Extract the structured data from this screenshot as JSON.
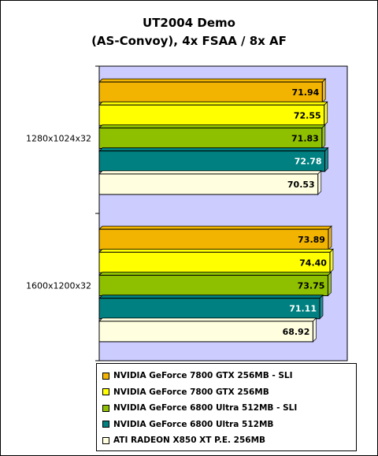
{
  "chart_data": {
    "type": "bar",
    "orientation": "horizontal",
    "title": [
      "UT2004 Demo",
      "(AS-Convoy), 4x FSAA / 8x AF"
    ],
    "categories": [
      "1280x1024x32",
      "1600x1200x32"
    ],
    "series": [
      {
        "name": "NVIDIA GeForce 7800 GTX 256MB - SLI",
        "color": "#f2b400",
        "label_color": "#000000",
        "values": [
          71.94,
          73.89
        ]
      },
      {
        "name": "NVIDIA GeForce 7800 GTX 256MB",
        "color": "#ffff00",
        "label_color": "#000000",
        "values": [
          72.55,
          74.4
        ]
      },
      {
        "name": "NVIDIA GeForce 6800 Ultra 512MB - SLI",
        "color": "#8fc000",
        "label_color": "#000000",
        "values": [
          71.83,
          73.75
        ]
      },
      {
        "name": "NVIDIA GeForce 6800 Ultra 512MB",
        "color": "#008080",
        "label_color": "#ffffff",
        "values": [
          72.78,
          71.11
        ]
      },
      {
        "name": "ATI RADEON X850 XT P.E. 256MB",
        "color": "#ffffe0",
        "label_color": "#000000",
        "values": [
          70.53,
          68.92
        ]
      }
    ],
    "value_labels": [
      [
        "71.94",
        "72.55",
        "71.83",
        "72.78",
        "70.53"
      ],
      [
        "73.89",
        "74.40",
        "73.75",
        "71.11",
        "68.92"
      ]
    ],
    "plot_background": "#ccccff",
    "grid": false,
    "legend_position": "bottom"
  }
}
